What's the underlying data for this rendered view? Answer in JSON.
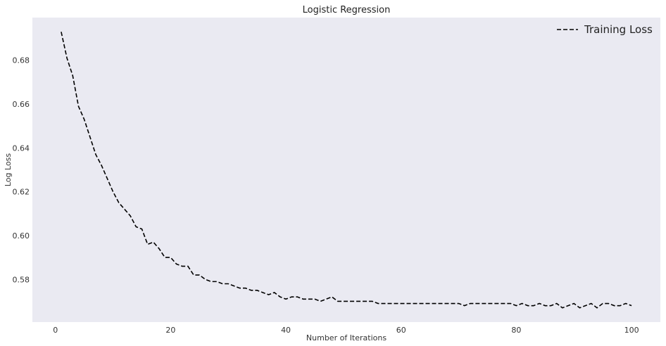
{
  "chart_data": {
    "type": "line",
    "title": "Logistic Regression",
    "xlabel": "Number of Iterations",
    "ylabel": "Log Loss",
    "xlim": [
      -4,
      105
    ],
    "ylim": [
      0.5605,
      0.6995
    ],
    "xticks": [
      0,
      20,
      40,
      60,
      80,
      100
    ],
    "yticks": [
      0.58,
      0.6,
      0.62,
      0.64,
      0.66,
      0.68
    ],
    "xtick_labels": [
      "0",
      "20",
      "40",
      "60",
      "80",
      "100"
    ],
    "ytick_labels": [
      "0.58",
      "0.60",
      "0.62",
      "0.64",
      "0.66",
      "0.68"
    ],
    "grid": false,
    "legend_position": "top-right",
    "background_color": "#EAEAF2",
    "series": [
      {
        "name": "Training Loss",
        "style": "dashed",
        "color": "#000000",
        "x": [
          1,
          2,
          3,
          4,
          5,
          6,
          7,
          8,
          9,
          10,
          11,
          12,
          13,
          14,
          15,
          16,
          17,
          18,
          19,
          20,
          21,
          22,
          23,
          24,
          25,
          26,
          27,
          28,
          29,
          30,
          31,
          32,
          33,
          34,
          35,
          36,
          37,
          38,
          39,
          40,
          41,
          42,
          43,
          44,
          45,
          46,
          47,
          48,
          49,
          50,
          51,
          52,
          53,
          54,
          55,
          56,
          57,
          58,
          59,
          60,
          61,
          62,
          63,
          64,
          65,
          66,
          67,
          68,
          69,
          70,
          71,
          72,
          73,
          74,
          75,
          76,
          77,
          78,
          79,
          80,
          81,
          82,
          83,
          84,
          85,
          86,
          87,
          88,
          89,
          90,
          91,
          92,
          93,
          94,
          95,
          96,
          97,
          98,
          99,
          100
        ],
        "values": [
          0.693,
          0.681,
          0.673,
          0.659,
          0.653,
          0.645,
          0.637,
          0.632,
          0.626,
          0.62,
          0.615,
          0.612,
          0.609,
          0.604,
          0.603,
          0.596,
          0.597,
          0.594,
          0.59,
          0.59,
          0.587,
          0.586,
          0.586,
          0.582,
          0.582,
          0.58,
          0.579,
          0.579,
          0.578,
          0.578,
          0.577,
          0.576,
          0.576,
          0.575,
          0.575,
          0.574,
          0.573,
          0.574,
          0.572,
          0.571,
          0.572,
          0.572,
          0.571,
          0.571,
          0.571,
          0.57,
          0.571,
          0.572,
          0.57,
          0.57,
          0.57,
          0.57,
          0.57,
          0.57,
          0.57,
          0.569,
          0.569,
          0.569,
          0.569,
          0.569,
          0.569,
          0.569,
          0.569,
          0.569,
          0.569,
          0.569,
          0.569,
          0.569,
          0.569,
          0.569,
          0.568,
          0.569,
          0.569,
          0.569,
          0.569,
          0.569,
          0.569,
          0.569,
          0.569,
          0.568,
          0.569,
          0.568,
          0.568,
          0.569,
          0.568,
          0.568,
          0.569,
          0.567,
          0.568,
          0.569,
          0.567,
          0.568,
          0.569,
          0.567,
          0.569,
          0.569,
          0.568,
          0.568,
          0.569,
          0.568
        ]
      }
    ]
  }
}
